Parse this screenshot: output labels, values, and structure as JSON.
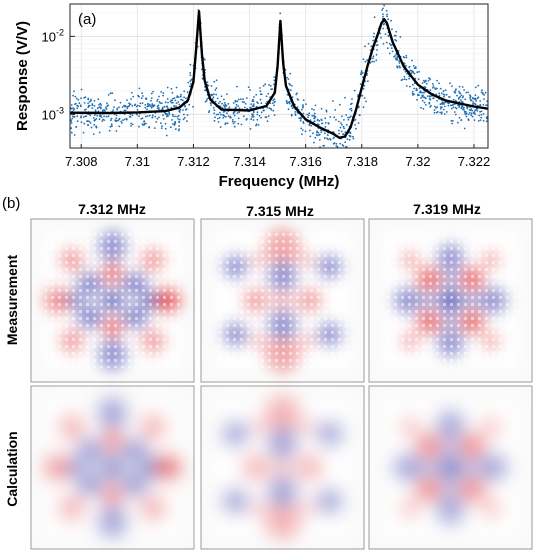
{
  "panel_a_label": "(a)",
  "panel_b_label": "(b)",
  "chart_data": {
    "type": "scatter",
    "xlabel": "Frequency (MHz)",
    "ylabel": "Response (V/V)",
    "xlim": [
      7.3076,
      7.3225
    ],
    "ylim": [
      0.00037,
      0.026
    ],
    "yscale": "log",
    "grid": true,
    "x_ticks": [
      7.308,
      7.31,
      7.312,
      7.314,
      7.316,
      7.318,
      7.32,
      7.322
    ],
    "x_tick_labels": [
      "7.308",
      "7.31",
      "7.312",
      "7.314",
      "7.316",
      "7.318",
      "7.32",
      "7.322"
    ],
    "y_ticks": [
      0.001,
      0.01
    ],
    "y_tick_base": "10",
    "y_tick_exponents": [
      "-3",
      "-2"
    ],
    "colors": {
      "data": "#1f6fb4",
      "fit": "#000000"
    },
    "series": [
      {
        "kind": "points",
        "noise": 0.12
      },
      {
        "kind": "line",
        "x": [
          7.3076,
          7.309,
          7.31,
          7.311,
          7.3115,
          7.3118,
          7.312,
          7.3121,
          7.3122,
          7.3123,
          7.3124,
          7.3126,
          7.313,
          7.314,
          7.3146,
          7.3149,
          7.315,
          7.3151,
          7.3152,
          7.3153,
          7.3156,
          7.316,
          7.3165,
          7.317,
          7.3172,
          7.3174,
          7.3176,
          7.3178,
          7.318,
          7.3182,
          7.3184,
          7.3186,
          7.3187,
          7.3188,
          7.3189,
          7.3191,
          7.3195,
          7.32,
          7.3205,
          7.321,
          7.322,
          7.3225
        ],
        "y": [
          0.00105,
          0.00104,
          0.00106,
          0.0011,
          0.00122,
          0.0015,
          0.0026,
          0.007,
          0.021,
          0.006,
          0.0027,
          0.00155,
          0.00115,
          0.00112,
          0.00128,
          0.0019,
          0.0042,
          0.0158,
          0.0045,
          0.0023,
          0.00125,
          0.00086,
          0.00068,
          0.00056,
          0.0005,
          0.00052,
          0.00068,
          0.00115,
          0.0022,
          0.0041,
          0.0072,
          0.0113,
          0.0147,
          0.0166,
          0.0147,
          0.0085,
          0.0041,
          0.0024,
          0.0018,
          0.0015,
          0.00126,
          0.00118
        ]
      }
    ]
  },
  "maps": {
    "columns": [
      "7.312 MHz",
      "7.315 MHz",
      "7.319 MHz"
    ],
    "rows": [
      "Measurement",
      "Calculation"
    ],
    "pos_color": "#e0262a",
    "neg_color": "#2a2ea8"
  }
}
